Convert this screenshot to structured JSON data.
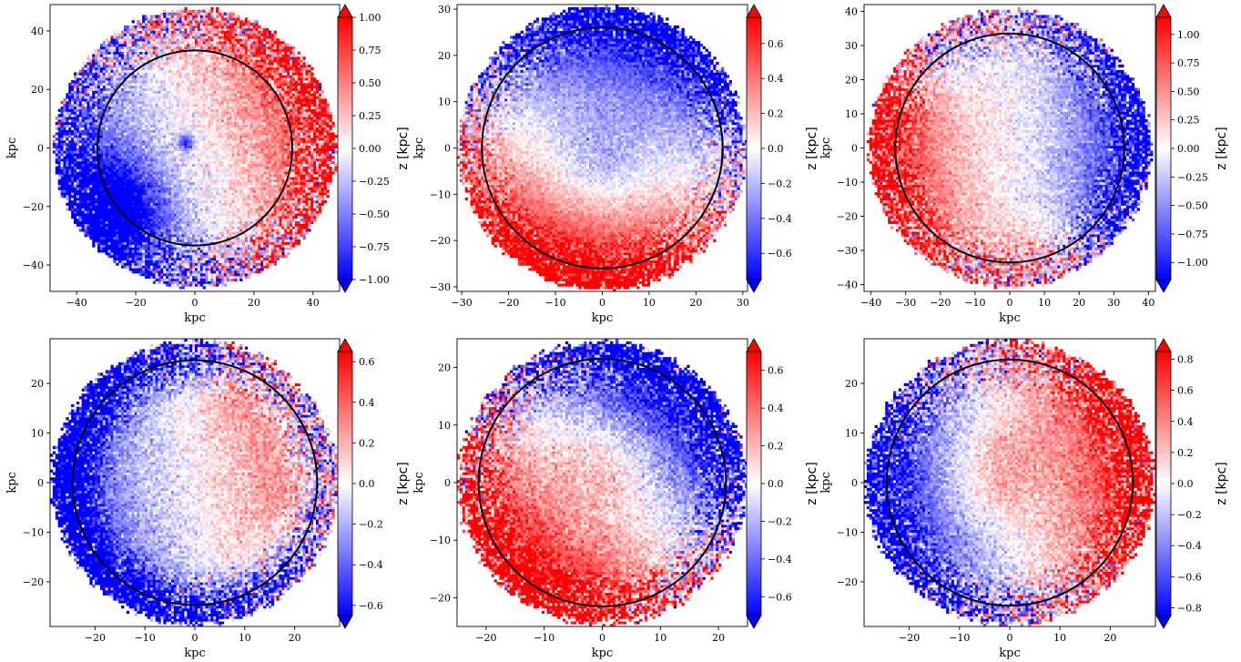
{
  "chart_data": [
    {
      "type": "heatmap",
      "xlabel": "kpc",
      "ylabel": "kpc",
      "xlim": [
        -49,
        49
      ],
      "ylim": [
        -49,
        49
      ],
      "xticks": [
        -40,
        -20,
        0,
        20,
        40
      ],
      "yticks": [
        -40,
        -20,
        0,
        20,
        40
      ],
      "disc_radius": 48,
      "circle_radius": 33,
      "colorbar": {
        "label": "z [kpc]",
        "vmin": -1.0,
        "vmax": 1.0,
        "ticks": [
          -1.0,
          -0.75,
          -0.5,
          -0.25,
          0.0,
          0.25,
          0.5,
          0.75,
          1.0
        ],
        "tick_labels": [
          "−1.00",
          "−0.75",
          "−0.50",
          "−0.25",
          "0.00",
          "0.25",
          "0.50",
          "0.75",
          "1.00"
        ],
        "extend": "both",
        "cmap": "bwr"
      },
      "map_pattern": {
        "components": [
          {
            "type": "dipole",
            "amp": 0.65,
            "dir_deg": 20,
            "r_scale": 33,
            "power": 1.3
          },
          {
            "type": "blob",
            "amp": -0.9,
            "x": -28,
            "y": -22,
            "sigma": 12
          },
          {
            "type": "blob",
            "amp": -0.8,
            "x": -3,
            "y": 2,
            "sigma": 2
          }
        ],
        "noise": 0.55
      }
    },
    {
      "type": "heatmap",
      "xlabel": "kpc",
      "ylabel": "kpc",
      "xlim": [
        -31,
        31
      ],
      "ylim": [
        -31,
        31
      ],
      "xticks": [
        -30,
        -20,
        -10,
        0,
        10,
        20,
        30
      ],
      "yticks": [
        -30,
        -20,
        -10,
        0,
        10,
        20,
        30
      ],
      "disc_radius": 31,
      "circle_radius": 25.7,
      "colorbar": {
        "label": "z [kpc]",
        "vmin": -0.75,
        "vmax": 0.75,
        "ticks": [
          -0.6,
          -0.4,
          -0.2,
          0.0,
          0.2,
          0.4,
          0.6
        ],
        "tick_labels": [
          "−0.6",
          "−0.4",
          "−0.2",
          "0.0",
          "0.2",
          "0.4",
          "0.6"
        ],
        "extend": "both",
        "cmap": "bwr"
      },
      "map_pattern": {
        "components": [
          {
            "type": "dipole",
            "amp": 0.75,
            "dir_deg": 255,
            "r_scale": 24,
            "power": 1.4
          },
          {
            "type": "blob",
            "amp": -0.25,
            "x": 0,
            "y": -2,
            "sigma": 8
          }
        ],
        "noise": 0.3
      }
    },
    {
      "type": "heatmap",
      "xlabel": "kpc",
      "ylabel": "kpc",
      "xlim": [
        -42,
        42
      ],
      "ylim": [
        -42,
        42
      ],
      "xticks": [
        -40,
        -30,
        -20,
        -10,
        0,
        10,
        20,
        30,
        40
      ],
      "yticks": [
        -40,
        -30,
        -20,
        -10,
        0,
        10,
        20,
        30,
        40
      ],
      "disc_radius": 41,
      "circle_radius": 33,
      "colorbar": {
        "label": "z [kpc]",
        "vmin": -1.15,
        "vmax": 1.15,
        "ticks": [
          -1.0,
          -0.75,
          -0.5,
          -0.25,
          0.0,
          0.25,
          0.5,
          0.75,
          1.0
        ],
        "tick_labels": [
          "−1.00",
          "−0.75",
          "−0.50",
          "−0.25",
          "0.00",
          "0.25",
          "0.50",
          "0.75",
          "1.00"
        ],
        "extend": "both",
        "cmap": "bwr"
      },
      "map_pattern": {
        "components": [
          {
            "type": "dipole",
            "amp": 1.0,
            "dir_deg": 180,
            "r_scale": 33,
            "power": 1.4
          },
          {
            "type": "blob",
            "amp": -0.7,
            "x": -20,
            "y": 30,
            "sigma": 10
          },
          {
            "type": "blob",
            "amp": 0.6,
            "x": 10,
            "y": -36,
            "sigma": 10
          }
        ],
        "noise": 0.55
      }
    },
    {
      "type": "heatmap",
      "xlabel": "kpc",
      "ylabel": "kpc",
      "xlim": [
        -29,
        29
      ],
      "ylim": [
        -29,
        29
      ],
      "xticks": [
        -20,
        -10,
        0,
        10,
        20
      ],
      "yticks": [
        -20,
        -10,
        0,
        10,
        20
      ],
      "disc_radius": 29,
      "circle_radius": 24.5,
      "colorbar": {
        "label": "z [kpc]",
        "vmin": -0.65,
        "vmax": 0.65,
        "ticks": [
          -0.6,
          -0.4,
          -0.2,
          0.0,
          0.2,
          0.4,
          0.6
        ],
        "tick_labels": [
          "−0.6",
          "−0.4",
          "−0.2",
          "0.0",
          "0.2",
          "0.4",
          "0.6"
        ],
        "extend": "both",
        "cmap": "bwr"
      },
      "map_pattern": {
        "components": [
          {
            "type": "ring",
            "amp": -0.55,
            "r0": 26,
            "width": 6
          },
          {
            "type": "dipole",
            "amp": 0.35,
            "dir_deg": 10,
            "r_scale": 20,
            "power": 1.0
          },
          {
            "type": "blob",
            "amp": 0.25,
            "x": 12,
            "y": 22,
            "sigma": 6
          }
        ],
        "noise": 0.35
      }
    },
    {
      "type": "heatmap",
      "xlabel": "kpc",
      "ylabel": "kpc",
      "xlim": [
        -25,
        25
      ],
      "ylim": [
        -25,
        25
      ],
      "xticks": [
        -20,
        -10,
        0,
        10,
        20
      ],
      "yticks": [
        -20,
        -10,
        0,
        10,
        20
      ],
      "disc_radius": 25,
      "circle_radius": 21.3,
      "colorbar": {
        "label": "z [kpc]",
        "vmin": -0.7,
        "vmax": 0.7,
        "ticks": [
          -0.6,
          -0.4,
          -0.2,
          0.0,
          0.2,
          0.4,
          0.6
        ],
        "tick_labels": [
          "−0.6",
          "−0.4",
          "−0.2",
          "0.0",
          "0.2",
          "0.4",
          "0.6"
        ],
        "extend": "both",
        "cmap": "bwr"
      },
      "map_pattern": {
        "components": [
          {
            "type": "dipole",
            "amp": 0.8,
            "dir_deg": 230,
            "r_scale": 20,
            "power": 1.3
          },
          {
            "type": "blob",
            "amp": 0.2,
            "x": 0,
            "y": 3,
            "sigma": 6
          }
        ],
        "noise": 0.4
      }
    },
    {
      "type": "heatmap",
      "xlabel": "kpc",
      "ylabel": "kpc",
      "xlim": [
        -29,
        29
      ],
      "ylim": [
        -29,
        29
      ],
      "xticks": [
        -20,
        -10,
        0,
        10,
        20
      ],
      "yticks": [
        -20,
        -10,
        0,
        10,
        20
      ],
      "disc_radius": 29,
      "circle_radius": 24.5,
      "colorbar": {
        "label": "z [kpc]",
        "vmin": -0.85,
        "vmax": 0.85,
        "ticks": [
          -0.8,
          -0.6,
          -0.4,
          -0.2,
          0.0,
          0.2,
          0.4,
          0.6,
          0.8
        ],
        "tick_labels": [
          "−0.8",
          "−0.6",
          "−0.4",
          "−0.2",
          "0.0",
          "0.2",
          "0.4",
          "0.6",
          "0.8"
        ],
        "extend": "both",
        "cmap": "bwr"
      },
      "map_pattern": {
        "components": [
          {
            "type": "dipole",
            "amp": 0.85,
            "dir_deg": 10,
            "r_scale": 24,
            "power": 1.3
          },
          {
            "type": "blob",
            "amp": 0.3,
            "x": -2,
            "y": 3,
            "sigma": 7
          }
        ],
        "noise": 0.45
      }
    }
  ]
}
